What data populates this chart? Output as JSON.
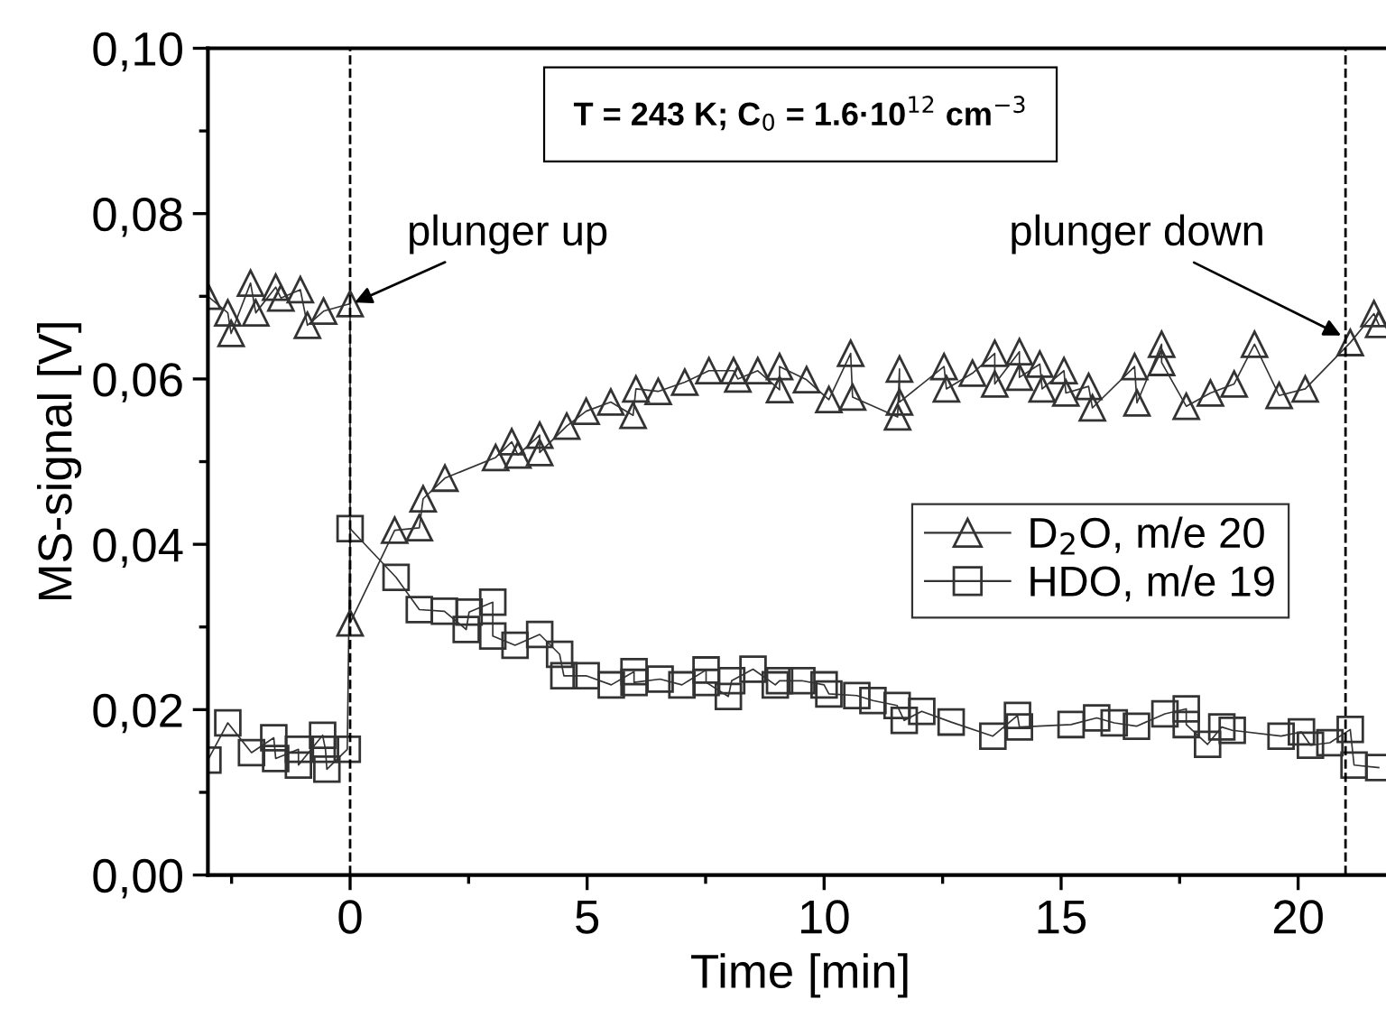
{
  "chart_data": {
    "type": "line",
    "xlabel": "Time [min]",
    "ylabel": "MS-signal [V]",
    "xlim": [
      -3,
      22
    ],
    "ylim": [
      0,
      0.1
    ],
    "xticks": [
      {
        "value": -2.5,
        "label": null
      },
      0,
      {
        "value": 2.5,
        "label": null
      },
      5,
      {
        "value": 7.5,
        "label": null
      },
      10,
      {
        "value": 12.5,
        "label": null
      },
      15,
      {
        "value": 17.5,
        "label": null
      },
      20
    ],
    "yticks": [
      {
        "value": 0,
        "label": "0,00"
      },
      {
        "value": 0.01,
        "label": null
      },
      {
        "value": 0.02,
        "label": "0,02"
      },
      {
        "value": 0.03,
        "label": null
      },
      {
        "value": 0.04,
        "label": "0,04"
      },
      {
        "value": 0.05,
        "label": null
      },
      {
        "value": 0.06,
        "label": "0,06"
      },
      {
        "value": 0.07,
        "label": null
      },
      {
        "value": 0.08,
        "label": "0,08"
      },
      {
        "value": 0.09,
        "label": null
      },
      {
        "value": 0.1,
        "label": "0,10"
      }
    ],
    "grid": false,
    "legend": "right",
    "line_style": "solid",
    "series": [
      {
        "name": "D$_{2}$O, m/e 20",
        "color": "#333333",
        "marker": "triangle",
        "x": [
          -3.0,
          -2.58,
          -2.51,
          -2.1,
          -1.99,
          -1.57,
          -1.46,
          -1.05,
          -0.9,
          -0.56,
          0,
          0,
          0.94,
          1.46,
          1.54,
          2.0,
          3.07,
          3.41,
          3.54,
          4.0,
          4.0,
          4.57,
          4.98,
          5.5,
          5.97,
          6.03,
          6.5,
          7.06,
          7.57,
          8.09,
          8.18,
          8.6,
          9.06,
          9.06,
          9.63,
          10.1,
          10.56,
          10.6,
          11.55,
          11.59,
          11.59,
          12.53,
          12.58,
          13.13,
          13.6,
          13.6,
          14.12,
          14.12,
          14.55,
          14.6,
          15.06,
          15.1,
          15.58,
          15.66,
          16.55,
          16.6,
          17.12,
          17.12,
          17.64,
          18.15,
          18.65,
          19.08,
          19.6,
          20.15,
          21.1,
          21.6,
          21.7
        ],
        "values": [
          0.07,
          0.068,
          0.0655,
          0.0716,
          0.068,
          0.0711,
          0.0698,
          0.0708,
          0.0665,
          0.0682,
          0.0691,
          0.0305,
          0.0417,
          0.042,
          0.0455,
          0.048,
          0.0505,
          0.0524,
          0.0508,
          0.0532,
          0.0511,
          0.0543,
          0.0561,
          0.0572,
          0.0556,
          0.0588,
          0.0585,
          0.0596,
          0.061,
          0.061,
          0.06,
          0.061,
          0.0587,
          0.0615,
          0.0599,
          0.0575,
          0.0631,
          0.0578,
          0.0554,
          0.0612,
          0.0572,
          0.0615,
          0.0588,
          0.0607,
          0.0631,
          0.0594,
          0.0633,
          0.0602,
          0.0618,
          0.0588,
          0.061,
          0.0583,
          0.0591,
          0.0565,
          0.0615,
          0.0571,
          0.0642,
          0.062,
          0.0567,
          0.0583,
          0.0594,
          0.0642,
          0.058,
          0.0588,
          0.0644,
          0.0679,
          0.0666
        ]
      },
      {
        "name": "HDO, m/e 19",
        "color": "#333333",
        "marker": "square",
        "x": [
          -3.0,
          -2.58,
          -2.08,
          -1.61,
          -1.57,
          -1.09,
          -1.09,
          -0.58,
          -0.52,
          -0.49,
          -0.06,
          0,
          0.97,
          1.46,
          1.99,
          2.45,
          2.51,
          3.01,
          3.01,
          3.48,
          4.0,
          4.42,
          4.51,
          4.98,
          5.51,
          5.99,
          5.99,
          6.54,
          7.0,
          7.51,
          7.51,
          7.98,
          8.05,
          8.5,
          8.97,
          9.06,
          9.53,
          10.0,
          10.1,
          10.69,
          11.03,
          11.54,
          11.69,
          12.06,
          12.68,
          13.56,
          14.08,
          14.12,
          15.21,
          15.75,
          16.12,
          16.59,
          17.19,
          17.64,
          17.64,
          18.09,
          18.39,
          18.61,
          19.64,
          20.07,
          20.26,
          20.67,
          21.1,
          21.18,
          21.7
        ],
        "values": [
          0.0139,
          0.0184,
          0.0148,
          0.0166,
          0.0141,
          0.0152,
          0.0133,
          0.0169,
          0.0152,
          0.0128,
          0.0152,
          0.0419,
          0.036,
          0.0321,
          0.0319,
          0.0297,
          0.0318,
          0.033,
          0.0289,
          0.0278,
          0.0291,
          0.0267,
          0.0241,
          0.0241,
          0.023,
          0.0246,
          0.0233,
          0.0237,
          0.023,
          0.0248,
          0.0233,
          0.0216,
          0.0235,
          0.0249,
          0.023,
          0.0235,
          0.0235,
          0.023,
          0.0219,
          0.0217,
          0.0211,
          0.0205,
          0.0187,
          0.0198,
          0.0185,
          0.0168,
          0.0193,
          0.0179,
          0.0182,
          0.019,
          0.0184,
          0.018,
          0.0195,
          0.0201,
          0.0182,
          0.0158,
          0.0179,
          0.0175,
          0.0168,
          0.0173,
          0.0157,
          0.016,
          0.0176,
          0.0133,
          0.013
        ]
      }
    ],
    "ref_lines": [
      {
        "axis": "x",
        "value": 0,
        "line_style": "dashed",
        "color": "#000000"
      },
      {
        "axis": "x",
        "value": 21.0,
        "line_style": "dashed",
        "color": "#000000"
      }
    ],
    "annotations": [
      {
        "text": "plunger up",
        "x": 0,
        "y": 0.069
      },
      {
        "text": "plunger down",
        "x": 21.0,
        "y": 0.065
      },
      "T = 243 K; C$_{0}$ = 1.6·10$^{12}$ cm$^{−3}$"
    ]
  }
}
